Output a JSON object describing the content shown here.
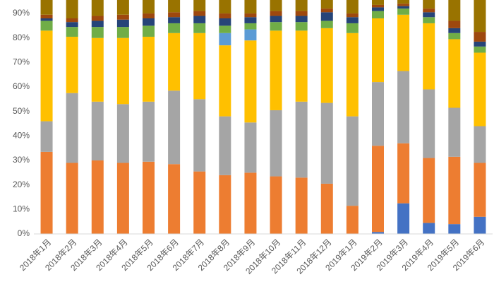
{
  "chart_data": {
    "type": "stacked_bar",
    "categories": [
      "2018年1月",
      "2018年2月",
      "2018年3月",
      "2018年4月",
      "2018年5月",
      "2018年6月",
      "2018年7月",
      "2018年8月",
      "2018年9月",
      "2018年10月",
      "2018年11月",
      "2018年12月",
      "2019年1月",
      "2019年2月",
      "2019年3月",
      "2019年4月",
      "2019年5月",
      "2019年6月"
    ],
    "series": [
      {
        "color": "#4472c4",
        "values": [
          0,
          0,
          0,
          0,
          0,
          0,
          0,
          0,
          0,
          0,
          0,
          0,
          0,
          0.8,
          12.5,
          4.5,
          4,
          7
        ]
      },
      {
        "color": "#ed7d31",
        "values": [
          33.5,
          29,
          30,
          29,
          29.5,
          28.5,
          25.5,
          24,
          25,
          23.5,
          23,
          20.5,
          11.5,
          35.2,
          24.5,
          26.5,
          27.5,
          22
        ]
      },
      {
        "color": "#a5a5a5",
        "values": [
          12.5,
          28.5,
          24,
          24,
          24.5,
          30,
          29.5,
          24,
          20.5,
          27,
          31,
          33,
          36.5,
          26,
          29.5,
          28,
          20,
          15
        ]
      },
      {
        "color": "#ffc000",
        "values": [
          37,
          23,
          26,
          27,
          26.5,
          23.5,
          27,
          29,
          33.5,
          32.5,
          29,
          30.5,
          34,
          26,
          23,
          27,
          28,
          30
        ]
      },
      {
        "color": "#5b9bd5",
        "values": [
          0,
          0,
          0,
          0,
          0,
          0,
          0,
          5,
          4.5,
          0,
          0,
          0,
          0,
          0,
          0,
          0,
          0,
          0
        ]
      },
      {
        "color": "#70ad47",
        "values": [
          4,
          4,
          4.5,
          4.5,
          4.5,
          4,
          4,
          3,
          2.5,
          3.5,
          3.5,
          3,
          4,
          3,
          2.5,
          2.5,
          2.5,
          2.5
        ]
      },
      {
        "color": "#264478",
        "values": [
          1,
          2,
          2.5,
          3,
          3,
          2.5,
          3,
          3,
          2.5,
          2.5,
          2.5,
          3.5,
          2.5,
          1.5,
          1,
          2,
          2,
          2
        ]
      },
      {
        "color": "#9e480e",
        "values": [
          1.5,
          1.5,
          2,
          2,
          2,
          2,
          2,
          2,
          1.5,
          2,
          2,
          1.5,
          1.5,
          1,
          1,
          1.5,
          3,
          4
        ]
      },
      {
        "color": "#997300",
        "values": [
          10.5,
          12,
          11,
          10.5,
          10,
          9.5,
          9,
          10,
          10,
          9,
          9,
          8,
          10,
          6.5,
          6,
          8,
          13,
          17.5
        ]
      }
    ],
    "ylim": [
      0,
      95.5
    ],
    "yticks": [
      {
        "value": 0,
        "label": "0%"
      },
      {
        "value": 10,
        "label": "10%"
      },
      {
        "value": 20,
        "label": "20%"
      },
      {
        "value": 30,
        "label": "30%"
      },
      {
        "value": 40,
        "label": "40%"
      },
      {
        "value": 50,
        "label": "50%"
      },
      {
        "value": 60,
        "label": "60%"
      },
      {
        "value": 70,
        "label": "70%"
      },
      {
        "value": 80,
        "label": "80%"
      },
      {
        "value": 90,
        "label": "90%"
      }
    ],
    "grid": false
  }
}
